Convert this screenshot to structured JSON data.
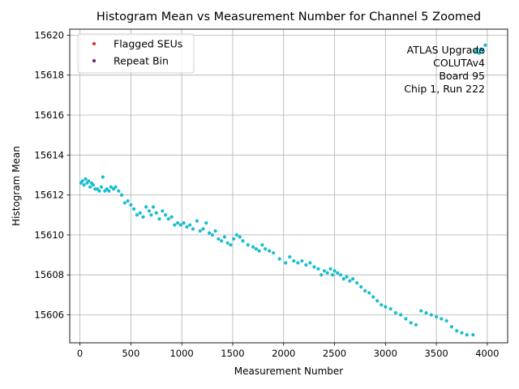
{
  "chart_data": {
    "type": "scatter",
    "title": "Histogram Mean vs Measurement Number for Channel 5 Zoomed",
    "xlabel": "Measurement Number",
    "ylabel": "Histogram Mean",
    "xlim": [
      -100,
      4200
    ],
    "ylim": [
      15604.6,
      15620.3
    ],
    "xticks": [
      0,
      500,
      1000,
      1500,
      2000,
      2500,
      3000,
      3500,
      4000
    ],
    "yticks": [
      15606,
      15608,
      15610,
      15612,
      15614,
      15616,
      15618,
      15620
    ],
    "grid": true,
    "legend": {
      "location": "top-left",
      "entries": [
        {
          "label": "Flagged SEUs",
          "color": "#d62728"
        },
        {
          "label": "Repeat Bin",
          "color": "#6b1a6b"
        }
      ]
    },
    "annotation": [
      "ATLAS Upgrade",
      "COLUTAv4",
      "Board 95",
      "Chip 1, Run 222"
    ],
    "series": [
      {
        "name": "Histogram Mean",
        "color": "#17becf",
        "x": [
          10,
          25,
          40,
          55,
          70,
          85,
          100,
          115,
          130,
          150,
          170,
          190,
          210,
          225,
          245,
          265,
          285,
          305,
          330,
          350,
          380,
          410,
          440,
          470,
          500,
          530,
          560,
          590,
          620,
          650,
          680,
          700,
          720,
          750,
          780,
          810,
          840,
          870,
          900,
          930,
          960,
          990,
          1020,
          1050,
          1080,
          1110,
          1150,
          1180,
          1210,
          1240,
          1270,
          1300,
          1330,
          1360,
          1390,
          1420,
          1450,
          1480,
          1510,
          1540,
          1570,
          1600,
          1650,
          1700,
          1730,
          1760,
          1790,
          1820,
          1860,
          1900,
          1960,
          2020,
          2060,
          2100,
          2140,
          2180,
          2220,
          2260,
          2300,
          2340,
          2370,
          2400,
          2430,
          2460,
          2480,
          2500,
          2530,
          2560,
          2590,
          2620,
          2650,
          2680,
          2720,
          2760,
          2800,
          2840,
          2880,
          2920,
          2960,
          3000,
          3050,
          3100,
          3150,
          3200,
          3250,
          3300,
          3350,
          3400,
          3450,
          3500,
          3550,
          3600,
          3650,
          3700,
          3750,
          3800,
          3860,
          3880,
          3900,
          3920,
          3940,
          3960,
          3980
        ],
        "y": [
          15612.6,
          15612.7,
          15612.5,
          15612.8,
          15612.6,
          15612.7,
          15612.4,
          15612.6,
          15612.5,
          15612.3,
          15612.3,
          15612.2,
          15612.4,
          15612.9,
          15612.2,
          15612.3,
          15612.2,
          15612.4,
          15612.3,
          15612.4,
          15612.2,
          15612.0,
          15611.6,
          15611.7,
          15611.5,
          15611.3,
          15611.0,
          15611.1,
          15610.9,
          15611.4,
          15611.2,
          15611.0,
          15611.4,
          15611.1,
          15610.8,
          15611.2,
          15611.0,
          15610.8,
          15610.9,
          15610.5,
          15610.6,
          15610.5,
          15610.6,
          15610.4,
          15610.5,
          15610.3,
          15610.7,
          15610.2,
          15610.3,
          15610.6,
          15610.1,
          15610.0,
          15610.2,
          15609.8,
          15609.7,
          15609.9,
          15609.6,
          15609.5,
          15609.8,
          15610.0,
          15609.9,
          15609.7,
          15609.5,
          15609.4,
          15609.3,
          15609.2,
          15609.5,
          15609.3,
          15609.2,
          15609.1,
          15608.8,
          15608.6,
          15608.9,
          15608.7,
          15608.6,
          15608.7,
          15608.5,
          15608.6,
          15608.4,
          15608.3,
          15608.0,
          15608.2,
          15608.1,
          15608.3,
          15608.0,
          15608.2,
          15608.1,
          15608.0,
          15607.8,
          15607.9,
          15607.7,
          15607.8,
          15607.6,
          15607.4,
          15607.2,
          15607.1,
          15606.9,
          15606.7,
          15606.5,
          15606.4,
          15606.3,
          15606.1,
          15606.0,
          15605.8,
          15605.6,
          15605.5,
          15606.2,
          15606.1,
          15606.0,
          15605.9,
          15605.8,
          15605.7,
          15605.4,
          15605.2,
          15605.1,
          15605.0,
          15605.0,
          15619.2,
          15619.3,
          15619.1,
          15619.3,
          15619.2,
          15619.5
        ]
      },
      {
        "name": "Flagged SEUs",
        "color": "#d62728",
        "x": [],
        "y": []
      },
      {
        "name": "Repeat Bin",
        "color": "#6b1a6b",
        "x": [],
        "y": []
      }
    ]
  }
}
